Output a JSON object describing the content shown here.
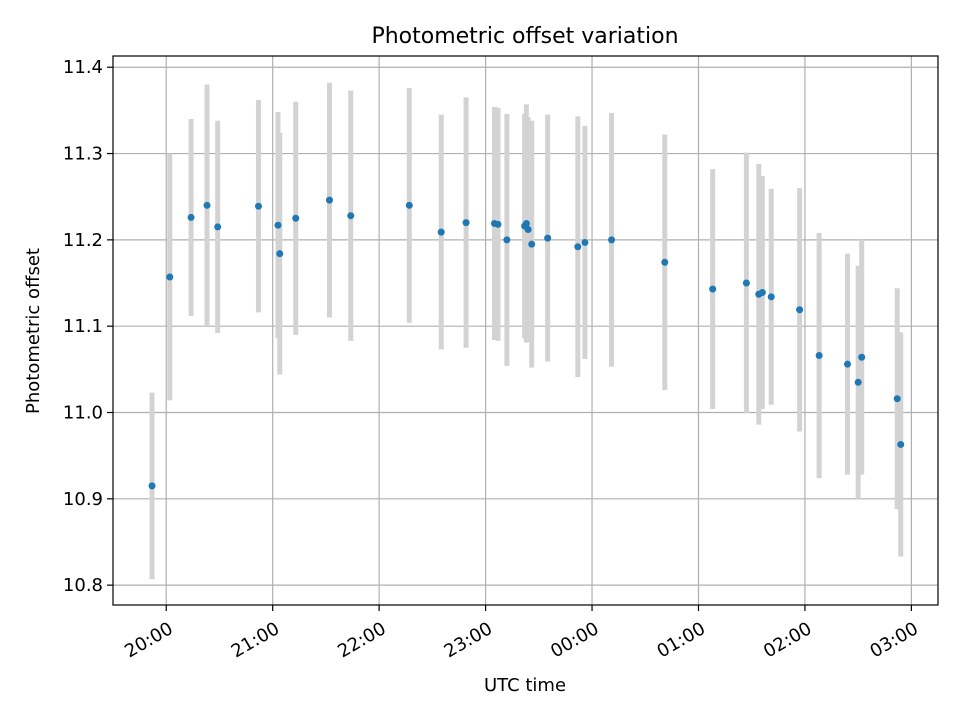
{
  "chart_data": {
    "type": "scatter",
    "title": "Photometric offset variation",
    "xlabel": "UTC time",
    "ylabel": "Photometric offset",
    "x_unit": "UTC time (HH:MM)",
    "xlim": [
      "19:30",
      "03:15"
    ],
    "ylim": [
      10.777,
      11.413
    ],
    "x_ticks": [
      "20:00",
      "21:00",
      "22:00",
      "23:00",
      "00:00",
      "01:00",
      "02:00",
      "03:00"
    ],
    "y_ticks": [
      "10.8",
      "10.9",
      "11.0",
      "11.1",
      "11.2",
      "11.3",
      "11.4"
    ],
    "grid": true,
    "legend": "none",
    "marker_color": "#1f77b4",
    "errorbar_color": "#d3d3d3",
    "series": [
      {
        "points": [
          {
            "time": "19:52",
            "y": 10.915,
            "err": 0.108
          },
          {
            "time": "20:02",
            "y": 11.157,
            "err": 0.143
          },
          {
            "time": "20:14",
            "y": 11.226,
            "err": 0.114
          },
          {
            "time": "20:23",
            "y": 11.24,
            "err": 0.14
          },
          {
            "time": "20:29",
            "y": 11.215,
            "err": 0.123
          },
          {
            "time": "20:52",
            "y": 11.239,
            "err": 0.123
          },
          {
            "time": "21:03",
            "y": 11.217,
            "err": 0.131
          },
          {
            "time": "21:04",
            "y": 11.184,
            "err": 0.14
          },
          {
            "time": "21:13",
            "y": 11.225,
            "err": 0.135
          },
          {
            "time": "21:32",
            "y": 11.246,
            "err": 0.136
          },
          {
            "time": "21:44",
            "y": 11.228,
            "err": 0.145
          },
          {
            "time": "22:17",
            "y": 11.24,
            "err": 0.136
          },
          {
            "time": "22:35",
            "y": 11.209,
            "err": 0.136
          },
          {
            "time": "22:49",
            "y": 11.22,
            "err": 0.145
          },
          {
            "time": "23:05",
            "y": 11.219,
            "err": 0.135
          },
          {
            "time": "23:07",
            "y": 11.218,
            "err": 0.135
          },
          {
            "time": "23:12",
            "y": 11.2,
            "err": 0.146
          },
          {
            "time": "23:22",
            "y": 11.216,
            "err": 0.13
          },
          {
            "time": "23:23",
            "y": 11.219,
            "err": 0.138
          },
          {
            "time": "23:24",
            "y": 11.212,
            "err": 0.13
          },
          {
            "time": "23:26",
            "y": 11.195,
            "err": 0.143
          },
          {
            "time": "23:35",
            "y": 11.202,
            "err": 0.143
          },
          {
            "time": "23:52",
            "y": 11.192,
            "err": 0.151
          },
          {
            "time": "23:56",
            "y": 11.197,
            "err": 0.135
          },
          {
            "time": "00:11",
            "y": 11.2,
            "err": 0.147
          },
          {
            "time": "00:41",
            "y": 11.174,
            "err": 0.148
          },
          {
            "time": "01:08",
            "y": 11.143,
            "err": 0.139
          },
          {
            "time": "01:27",
            "y": 11.15,
            "err": 0.151
          },
          {
            "time": "01:34",
            "y": 11.137,
            "err": 0.151
          },
          {
            "time": "01:36",
            "y": 11.139,
            "err": 0.135
          },
          {
            "time": "01:41",
            "y": 11.134,
            "err": 0.125
          },
          {
            "time": "01:57",
            "y": 11.119,
            "err": 0.141
          },
          {
            "time": "02:08",
            "y": 11.066,
            "err": 0.142
          },
          {
            "time": "02:24",
            "y": 11.056,
            "err": 0.128
          },
          {
            "time": "02:30",
            "y": 11.035,
            "err": 0.135
          },
          {
            "time": "02:32",
            "y": 11.064,
            "err": 0.136
          },
          {
            "time": "02:52",
            "y": 11.016,
            "err": 0.128
          },
          {
            "time": "02:54",
            "y": 10.963,
            "err": 0.13
          }
        ]
      }
    ]
  }
}
